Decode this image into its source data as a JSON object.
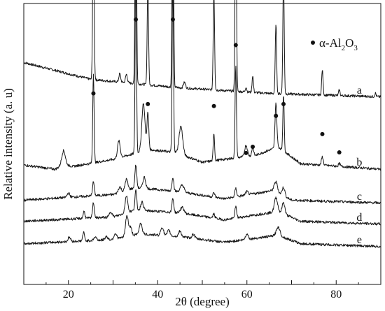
{
  "chart_data": {
    "type": "line",
    "title": "",
    "xlabel": "2θ (degree)",
    "ylabel": "Relative intensity (a. u)",
    "xlim": [
      10,
      90
    ],
    "xticks": [
      20,
      40,
      60,
      80
    ],
    "y_ticks_shown": false,
    "grid": false,
    "legend": {
      "position": "top-right",
      "marker": "filled-circle",
      "label_main": "α-Al",
      "sub1": "2",
      "mid": "O",
      "sub2": "3"
    },
    "line_color": "#1a1a1a",
    "series": [
      {
        "name": "a",
        "baseline": [
          [
            10,
            0.79
          ],
          [
            25,
            0.73
          ],
          [
            45,
            0.7
          ],
          [
            65,
            0.68
          ],
          [
            90,
            0.668
          ]
        ],
        "noise": 0.0045,
        "peaks": [
          [
            25.6,
            0.66,
            0.15
          ],
          [
            35.1,
            0.96,
            0.15
          ],
          [
            37.8,
            0.36,
            0.15
          ],
          [
            43.4,
            0.97,
            0.15
          ],
          [
            52.6,
            0.35,
            0.15
          ],
          [
            57.5,
            0.74,
            0.15
          ],
          [
            59.8,
            0.018,
            0.15
          ],
          [
            61.3,
            0.06,
            0.15
          ],
          [
            66.5,
            0.25,
            0.15
          ],
          [
            68.2,
            0.42,
            0.15
          ],
          [
            76.9,
            0.09,
            0.15
          ],
          [
            80.7,
            0.02,
            0.15
          ],
          [
            88.8,
            0.012,
            0.15
          ],
          [
            31.5,
            0.03,
            0.2
          ],
          [
            33.0,
            0.03,
            0.2
          ],
          [
            46.0,
            0.02,
            0.25
          ]
        ],
        "dots": [
          [
            25.6,
            0.68
          ],
          [
            35.1,
            0.943
          ],
          [
            37.8,
            0.642
          ],
          [
            43.4,
            0.943
          ],
          [
            52.6,
            0.635
          ],
          [
            57.5,
            0.852
          ],
          [
            59.8,
            0.468
          ],
          [
            61.3,
            0.49
          ],
          [
            66.5,
            0.6
          ],
          [
            68.2,
            0.642
          ],
          [
            76.9,
            0.535
          ],
          [
            80.7,
            0.47
          ]
        ]
      },
      {
        "name": "b",
        "baseline": [
          [
            10,
            0.425
          ],
          [
            17,
            0.41
          ],
          [
            19,
            0.427
          ],
          [
            21,
            0.42
          ],
          [
            30,
            0.445
          ],
          [
            38,
            0.48
          ],
          [
            44,
            0.47
          ],
          [
            50,
            0.435
          ],
          [
            62,
            0.46
          ],
          [
            67,
            0.49
          ],
          [
            72,
            0.43
          ],
          [
            90,
            0.41
          ]
        ],
        "noise": 0.0045,
        "peaks": [
          [
            18.9,
            0.05,
            0.4
          ],
          [
            25.6,
            0.32,
            0.15
          ],
          [
            31.3,
            0.06,
            0.3
          ],
          [
            35.1,
            0.66,
            0.15
          ],
          [
            36.8,
            0.17,
            0.35
          ],
          [
            37.8,
            0.13,
            0.2
          ],
          [
            43.4,
            0.62,
            0.15
          ],
          [
            45.2,
            0.1,
            0.4
          ],
          [
            52.6,
            0.1,
            0.15
          ],
          [
            57.5,
            0.33,
            0.15
          ],
          [
            59.8,
            0.04,
            0.3
          ],
          [
            61.3,
            0.03,
            0.2
          ],
          [
            66.5,
            0.16,
            0.2
          ],
          [
            68.2,
            0.2,
            0.15
          ],
          [
            76.9,
            0.03,
            0.2
          ],
          [
            80.7,
            0.01,
            0.2
          ]
        ],
        "dots": []
      },
      {
        "name": "c",
        "baseline": [
          [
            10,
            0.3
          ],
          [
            30,
            0.32
          ],
          [
            35,
            0.345
          ],
          [
            45,
            0.33
          ],
          [
            55,
            0.305
          ],
          [
            66,
            0.335
          ],
          [
            70,
            0.3
          ],
          [
            90,
            0.29
          ]
        ],
        "noise": 0.0045,
        "peaks": [
          [
            20.0,
            0.015,
            0.3
          ],
          [
            25.6,
            0.05,
            0.2
          ],
          [
            31.5,
            0.02,
            0.3
          ],
          [
            33.0,
            0.04,
            0.3
          ],
          [
            35.1,
            0.08,
            0.2
          ],
          [
            37.0,
            0.04,
            0.3
          ],
          [
            43.4,
            0.05,
            0.2
          ],
          [
            45.5,
            0.025,
            0.4
          ],
          [
            52.6,
            0.015,
            0.2
          ],
          [
            57.5,
            0.03,
            0.2
          ],
          [
            60.0,
            0.012,
            0.3
          ],
          [
            66.5,
            0.035,
            0.35
          ],
          [
            68.2,
            0.03,
            0.3
          ]
        ],
        "dots": []
      },
      {
        "name": "d",
        "baseline": [
          [
            10,
            0.225
          ],
          [
            30,
            0.24
          ],
          [
            35,
            0.265
          ],
          [
            45,
            0.255
          ],
          [
            55,
            0.23
          ],
          [
            67,
            0.26
          ],
          [
            72,
            0.225
          ],
          [
            90,
            0.215
          ]
        ],
        "noise": 0.0045,
        "peaks": [
          [
            23.5,
            0.025,
            0.2
          ],
          [
            25.6,
            0.055,
            0.2
          ],
          [
            29.5,
            0.02,
            0.3
          ],
          [
            33.0,
            0.06,
            0.3
          ],
          [
            35.1,
            0.07,
            0.2
          ],
          [
            36.5,
            0.03,
            0.3
          ],
          [
            43.4,
            0.05,
            0.2
          ],
          [
            45.5,
            0.02,
            0.4
          ],
          [
            52.6,
            0.015,
            0.2
          ],
          [
            57.5,
            0.04,
            0.2
          ],
          [
            66.5,
            0.05,
            0.35
          ],
          [
            68.2,
            0.04,
            0.3
          ]
        ],
        "dots": []
      },
      {
        "name": "e",
        "baseline": [
          [
            10,
            0.145
          ],
          [
            30,
            0.16
          ],
          [
            36,
            0.18
          ],
          [
            45,
            0.17
          ],
          [
            55,
            0.15
          ],
          [
            67,
            0.175
          ],
          [
            72,
            0.145
          ],
          [
            90,
            0.135
          ]
        ],
        "noise": 0.0045,
        "peaks": [
          [
            20.2,
            0.015,
            0.3
          ],
          [
            23.4,
            0.03,
            0.2
          ],
          [
            26.0,
            0.012,
            0.3
          ],
          [
            28.5,
            0.012,
            0.3
          ],
          [
            30.5,
            0.02,
            0.3
          ],
          [
            33.1,
            0.075,
            0.3
          ],
          [
            33.9,
            0.03,
            0.3
          ],
          [
            36.2,
            0.04,
            0.3
          ],
          [
            41.0,
            0.03,
            0.3
          ],
          [
            42.5,
            0.02,
            0.3
          ],
          [
            45.0,
            0.02,
            0.3
          ],
          [
            48.0,
            0.015,
            0.3
          ],
          [
            60.0,
            0.02,
            0.3
          ],
          [
            67.0,
            0.03,
            0.4
          ]
        ],
        "dots": []
      }
    ]
  }
}
